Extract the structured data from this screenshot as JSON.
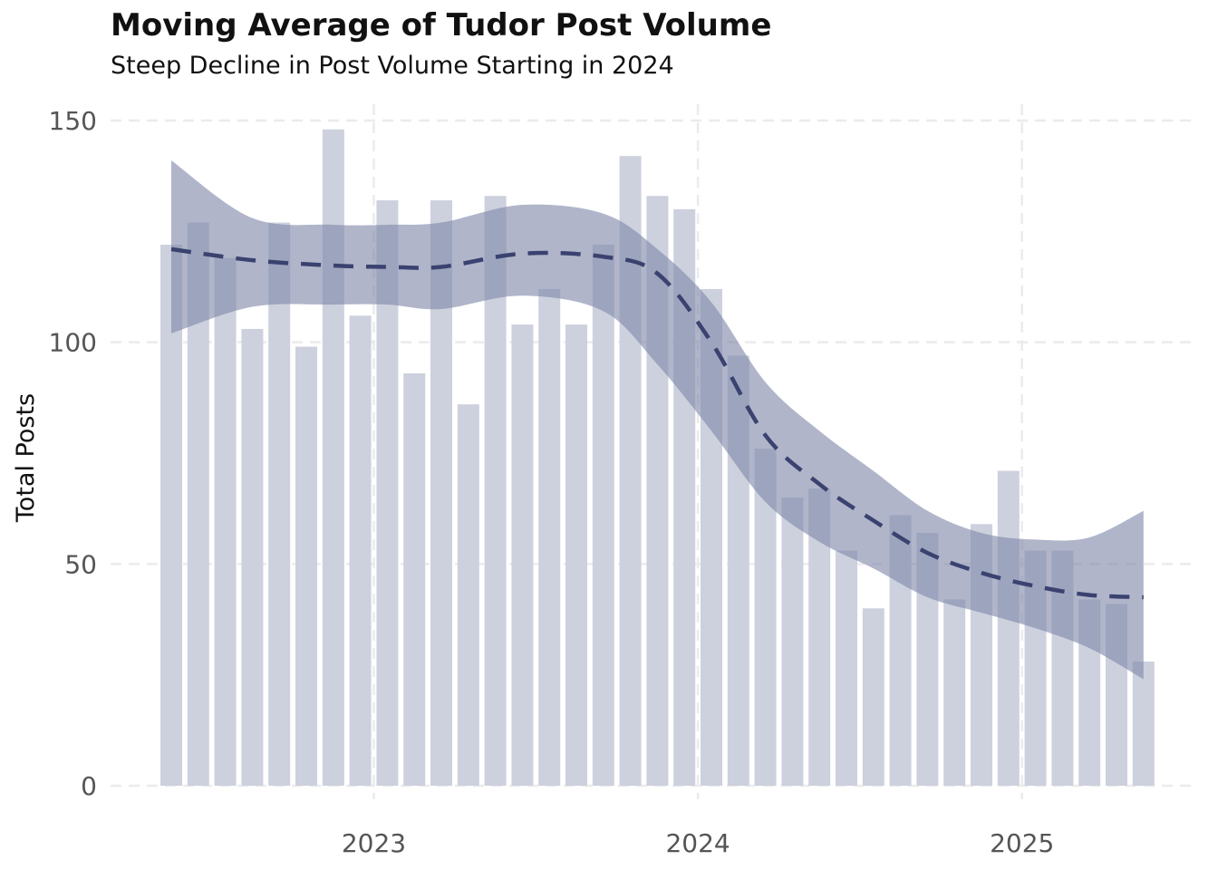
{
  "chart_data": {
    "type": "bar",
    "title": "Moving Average of Tudor Post Volume",
    "subtitle": "Steep Decline in Post Volume Starting in 2024",
    "xlabel": "",
    "ylabel": "Total Posts",
    "ylim": [
      0,
      150
    ],
    "y_ticks": [
      0,
      50,
      100,
      150
    ],
    "x_ticks": [
      "2023",
      "2024",
      "2025"
    ],
    "x_tick_dates": [
      "2023-01-01",
      "2024-01-01",
      "2025-01-01"
    ],
    "grid": true,
    "bar_color": "#cdd1de",
    "line_color": "#3a4270",
    "band_color": "#8088aa",
    "months": [
      "2022-05",
      "2022-06",
      "2022-07",
      "2022-08",
      "2022-09",
      "2022-10",
      "2022-11",
      "2022-12",
      "2023-01",
      "2023-02",
      "2023-03",
      "2023-04",
      "2023-05",
      "2023-06",
      "2023-07",
      "2023-08",
      "2023-09",
      "2023-10",
      "2023-11",
      "2023-12",
      "2024-01",
      "2024-02",
      "2024-03",
      "2024-04",
      "2024-05",
      "2024-06",
      "2024-07",
      "2024-08",
      "2024-09",
      "2024-10",
      "2024-11",
      "2024-12",
      "2025-01",
      "2025-02",
      "2025-03",
      "2025-04",
      "2025-05"
    ],
    "values": [
      122,
      127,
      119,
      103,
      127,
      99,
      148,
      106,
      132,
      93,
      132,
      86,
      133,
      104,
      112,
      104,
      122,
      142,
      133,
      130,
      112,
      97,
      76,
      65,
      67,
      53,
      40,
      61,
      57,
      42,
      59,
      71,
      53,
      53,
      42,
      41,
      28
    ],
    "trend": {
      "style": "dashed",
      "x": [
        "2022-05",
        "2022-08",
        "2022-11",
        "2023-01",
        "2023-03",
        "2023-06",
        "2023-09",
        "2023-11",
        "2024-01",
        "2024-03",
        "2024-05",
        "2024-07",
        "2024-09",
        "2024-11",
        "2025-01",
        "2025-03",
        "2025-05"
      ],
      "y": [
        121,
        118.5,
        117.3,
        117,
        117,
        120,
        119.3,
        115.5,
        100,
        79,
        68,
        59.8,
        52.5,
        48,
        45,
        43,
        42.5
      ],
      "ci_lower": [
        102,
        108,
        108.5,
        108.5,
        107.5,
        110.5,
        107,
        95,
        80,
        64,
        55,
        49,
        42.5,
        39,
        35.5,
        31,
        24
      ],
      "ci_upper": [
        141,
        128,
        126.5,
        126.5,
        127,
        131,
        129,
        121,
        109,
        91,
        80,
        71,
        62,
        57,
        55.5,
        56,
        62
      ]
    }
  }
}
